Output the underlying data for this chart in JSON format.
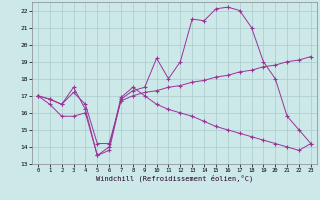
{
  "title": "Windchill (Refroidissement éolien,°C)",
  "bg_color": "#cce8e8",
  "grid_color": "#aacccc",
  "line_color": "#993399",
  "ylim": [
    13,
    22.5
  ],
  "yticks": [
    13,
    14,
    15,
    16,
    17,
    18,
    19,
    20,
    21,
    22
  ],
  "xlim": [
    -0.5,
    23.5
  ],
  "xticks": [
    0,
    1,
    2,
    3,
    4,
    5,
    6,
    7,
    8,
    9,
    10,
    11,
    12,
    13,
    14,
    15,
    16,
    17,
    18,
    19,
    20,
    21,
    22,
    23
  ],
  "line1_x": [
    0,
    1,
    2,
    3,
    4,
    5,
    6,
    7,
    8,
    9,
    10,
    11,
    12,
    13,
    14,
    15,
    16,
    17,
    18,
    19,
    20,
    21,
    22,
    23
  ],
  "line1_y": [
    17.0,
    16.5,
    15.8,
    15.8,
    16.0,
    13.5,
    13.8,
    16.8,
    17.3,
    17.5,
    19.2,
    18.0,
    19.0,
    21.5,
    21.4,
    22.1,
    22.2,
    22.0,
    21.0,
    19.0,
    18.0,
    15.8,
    15.0,
    14.2
  ],
  "line2_x": [
    0,
    1,
    2,
    3,
    4,
    5,
    6,
    7,
    8,
    9,
    10,
    11,
    12,
    13,
    14,
    15,
    16,
    17,
    18,
    19,
    20,
    21,
    22,
    23
  ],
  "line2_y": [
    17.0,
    16.8,
    16.5,
    17.2,
    16.5,
    14.2,
    14.2,
    16.7,
    17.0,
    17.2,
    17.3,
    17.5,
    17.6,
    17.8,
    17.9,
    18.1,
    18.2,
    18.4,
    18.5,
    18.7,
    18.8,
    19.0,
    19.1,
    19.3
  ],
  "line3_x": [
    0,
    1,
    2,
    3,
    4,
    5,
    6,
    7,
    8,
    9,
    10,
    11,
    12,
    13,
    14,
    15,
    16,
    17,
    18,
    19,
    20,
    21,
    22,
    23
  ],
  "line3_y": [
    17.0,
    16.8,
    16.5,
    17.5,
    16.2,
    13.5,
    14.0,
    16.9,
    17.5,
    17.0,
    16.5,
    16.2,
    16.0,
    15.8,
    15.5,
    15.2,
    15.0,
    14.8,
    14.6,
    14.4,
    14.2,
    14.0,
    13.8,
    14.2
  ]
}
